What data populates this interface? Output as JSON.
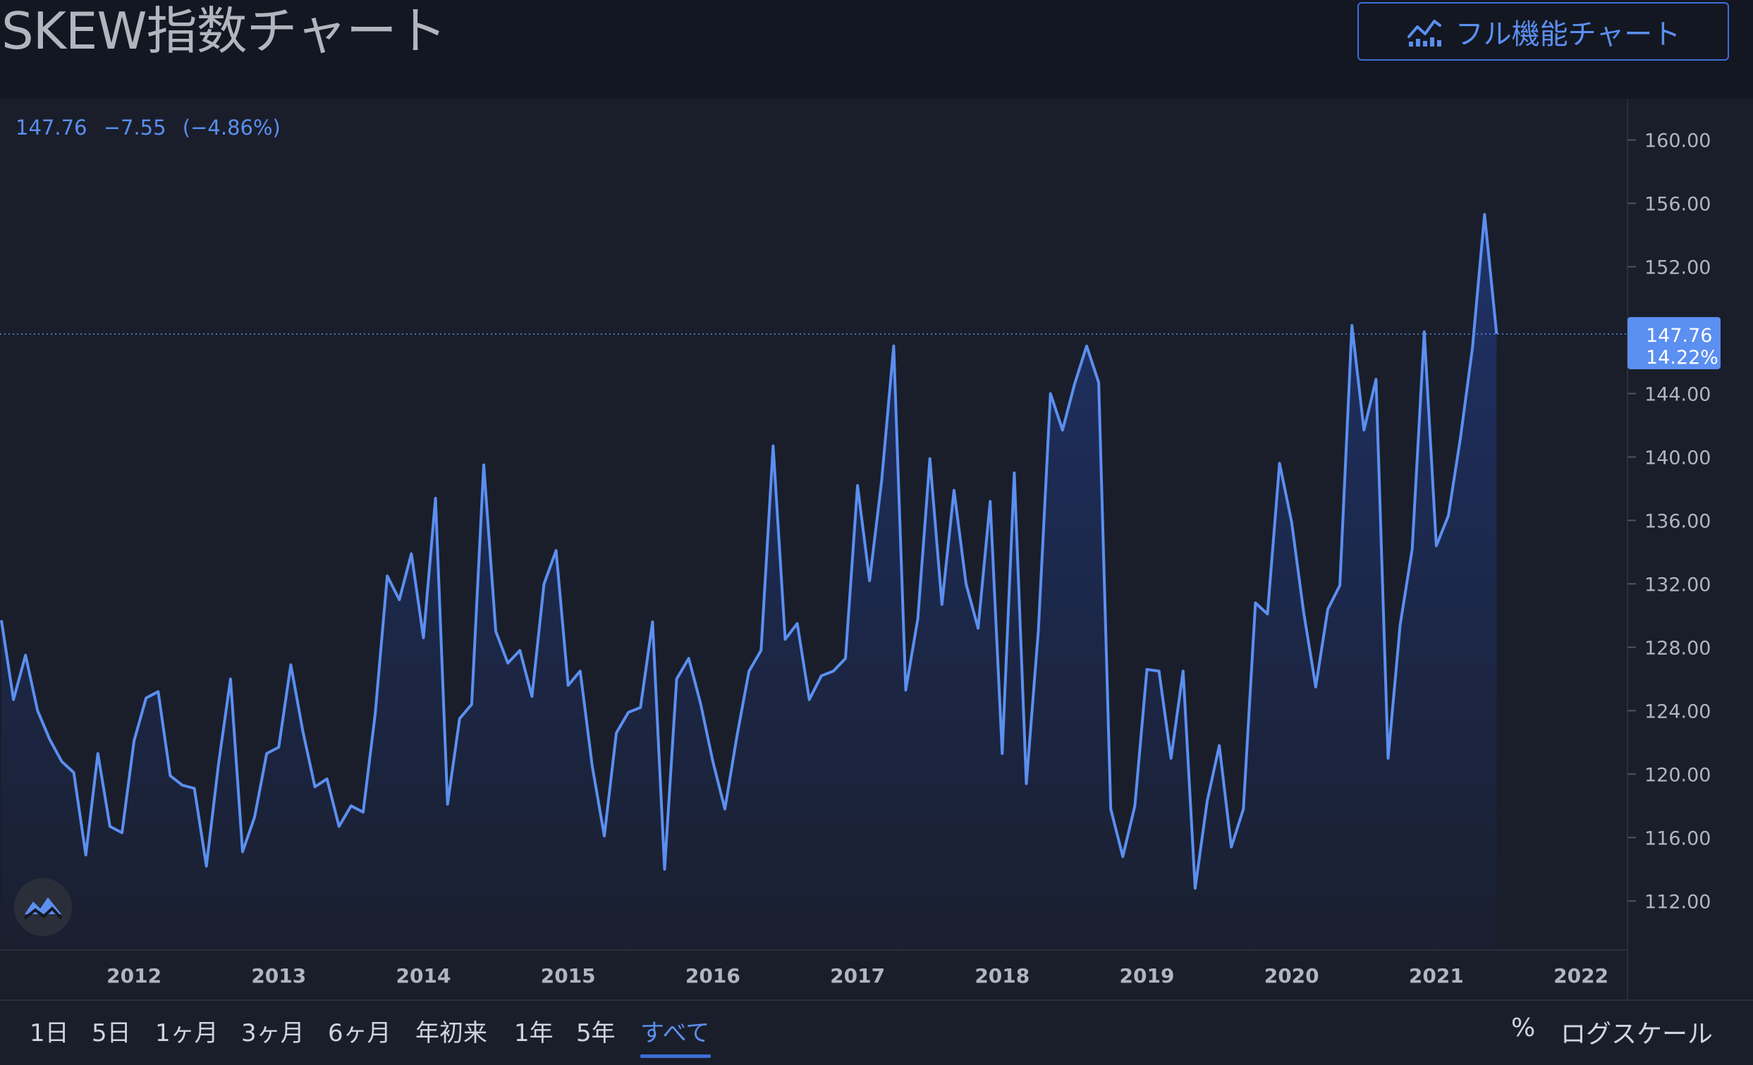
{
  "header": {
    "title": "SKEW指数チャート",
    "full_chart_button": "フル機能チャート",
    "full_chart_icon": "chart-line-icon"
  },
  "legend": {
    "last": "147.76",
    "change": "−7.55",
    "change_pct": "(−4.86%)"
  },
  "price_label": {
    "value": "147.76",
    "pct": "14.22%"
  },
  "range_buttons": [
    "1日",
    "5日",
    "1ヶ月",
    "3ヶ月",
    "6ヶ月",
    "年初来",
    "1年",
    "5年",
    "すべて"
  ],
  "active_range": "すべて",
  "right_controls": {
    "percent": "%",
    "log": "ログスケール"
  },
  "colors": {
    "background": "#131722",
    "panel": "#1a1e2b",
    "line": "#5b8ff0",
    "accent": "#3d6fd6",
    "text": "#d1d4dc"
  },
  "chart_data": {
    "type": "area",
    "x_start": "2011-02",
    "x_step": "month",
    "xticks": [
      "2012",
      "2013",
      "2014",
      "2015",
      "2016",
      "2017",
      "2018",
      "2019",
      "2020",
      "2021",
      "2022"
    ],
    "yticks": [
      "160.00",
      "156.00",
      "152.00",
      "148.00",
      "144.00",
      "140.00",
      "136.00",
      "132.00",
      "128.00",
      "124.00",
      "120.00",
      "116.00",
      "112.00"
    ],
    "ylim": [
      108.9,
      162.6
    ],
    "grid": false,
    "last_value": 147.76,
    "values": [
      129.7,
      124.7,
      127.5,
      124.0,
      122.2,
      120.8,
      120.1,
      114.9,
      121.3,
      116.7,
      116.3,
      122.1,
      124.8,
      125.2,
      119.9,
      119.3,
      119.1,
      114.2,
      120.6,
      126.0,
      115.1,
      117.3,
      121.3,
      121.7,
      126.9,
      122.7,
      119.2,
      119.7,
      116.7,
      118.0,
      117.6,
      123.8,
      132.5,
      131.0,
      133.9,
      128.6,
      137.4,
      118.1,
      123.5,
      124.4,
      139.5,
      129.0,
      127.0,
      127.8,
      124.9,
      132.0,
      134.1,
      125.6,
      126.5,
      120.5,
      116.1,
      122.6,
      123.9,
      124.2,
      129.6,
      114.0,
      126.0,
      127.3,
      124.4,
      120.8,
      117.8,
      122.4,
      126.5,
      127.8,
      140.7,
      128.5,
      129.5,
      124.7,
      126.2,
      126.5,
      127.3,
      138.2,
      132.2,
      138.5,
      147.0,
      125.3,
      129.8,
      139.9,
      130.7,
      137.9,
      132.0,
      129.2,
      137.2,
      121.3,
      139.0,
      119.4,
      129.1,
      144.0,
      141.7,
      144.6,
      147.0,
      144.7,
      117.8,
      114.8,
      118.0,
      126.6,
      126.5,
      121.0,
      126.5,
      112.8,
      118.3,
      121.8,
      115.4,
      117.8,
      130.8,
      130.1,
      139.6,
      135.9,
      130.2,
      125.5,
      130.4,
      131.9,
      148.3,
      141.7,
      144.9,
      121.0,
      129.4,
      134.2,
      147.9,
      134.4,
      136.3,
      141.2,
      146.9,
      155.3,
      147.76
    ]
  }
}
